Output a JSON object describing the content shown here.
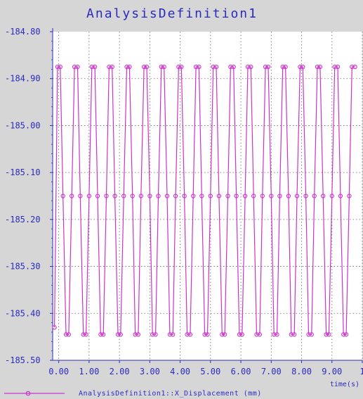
{
  "chart_data": {
    "type": "line",
    "title": "AnalysisDefinition1",
    "xlabel": "time(s)",
    "ylabel": "",
    "xlim": [
      -0.2,
      10.0
    ],
    "ylim": [
      -185.5,
      -184.8
    ],
    "x_ticks": [
      "0.00",
      "1.00",
      "2.00",
      "3.00",
      "4.00",
      "5.00",
      "6.00",
      "7.00",
      "8.00",
      "9.00",
      "1"
    ],
    "y_ticks": [
      "-184.80",
      "-184.90",
      "-185.00",
      "-185.10",
      "-185.20",
      "-185.30",
      "-185.40",
      "-185.50"
    ],
    "grid": true,
    "legend_position": "bottom-left",
    "colors": {
      "series": "#cc33cc",
      "text": "#2b2bbf",
      "plot_bg": "#ffffff",
      "page_bg": "#d6d6d6"
    },
    "period_s": 0.952,
    "series": [
      {
        "name": "AnalysisDefinition1::X_Displacement (mm)",
        "x": [
          -0.14,
          -0.04,
          0.05,
          0.14,
          0.24,
          0.33,
          0.43,
          0.52,
          0.62,
          0.71,
          0.81,
          0.9,
          1.0,
          1.09,
          1.19,
          1.28,
          1.38,
          1.47,
          1.57,
          1.66,
          1.76,
          1.85,
          1.95,
          2.04,
          2.14,
          2.24,
          2.33,
          2.43,
          2.52,
          2.62,
          2.71,
          2.81,
          2.9,
          3.0,
          3.09,
          3.19,
          3.28,
          3.38,
          3.47,
          3.57,
          3.66,
          3.76,
          3.85,
          3.95,
          4.04,
          4.14,
          4.23,
          4.33,
          4.43,
          4.52,
          4.62,
          4.71,
          4.81,
          4.9,
          5.0,
          5.09,
          5.19,
          5.28,
          5.38,
          5.47,
          5.57,
          5.66,
          5.76,
          5.85,
          5.95,
          6.04,
          6.14,
          6.23,
          6.33,
          6.42,
          6.52,
          6.62,
          6.71,
          6.81,
          6.9,
          7.0,
          7.09,
          7.19,
          7.28,
          7.38,
          7.47,
          7.57,
          7.66,
          7.76,
          7.85,
          7.95,
          8.04,
          8.14,
          8.23,
          8.33,
          8.42,
          8.52,
          8.61,
          8.71,
          8.81,
          8.9,
          9.0,
          9.09,
          9.19,
          9.28,
          9.38,
          9.47,
          9.57,
          9.66,
          9.76
        ],
        "y": [
          -185.43,
          -184.875,
          -184.875,
          -185.15,
          -185.445,
          -185.445,
          -185.15,
          -184.875,
          -184.875,
          -185.15,
          -185.445,
          -185.445,
          -185.15,
          -184.875,
          -184.875,
          -185.15,
          -185.445,
          -185.445,
          -185.15,
          -184.875,
          -184.875,
          -185.15,
          -185.445,
          -185.445,
          -185.15,
          -184.875,
          -184.875,
          -185.15,
          -185.445,
          -185.445,
          -185.15,
          -184.875,
          -184.875,
          -185.15,
          -185.445,
          -185.445,
          -185.15,
          -184.875,
          -184.875,
          -185.15,
          -185.445,
          -185.445,
          -185.15,
          -184.875,
          -184.875,
          -185.15,
          -185.445,
          -185.445,
          -185.15,
          -184.875,
          -184.875,
          -185.15,
          -185.445,
          -185.445,
          -185.15,
          -184.875,
          -184.875,
          -185.15,
          -185.445,
          -185.445,
          -185.15,
          -184.875,
          -184.875,
          -185.15,
          -185.445,
          -185.445,
          -185.15,
          -184.875,
          -184.875,
          -185.15,
          -185.445,
          -185.445,
          -185.15,
          -184.875,
          -184.875,
          -185.15,
          -185.445,
          -185.445,
          -185.15,
          -184.875,
          -184.875,
          -185.15,
          -185.445,
          -185.445,
          -185.15,
          -184.875,
          -184.875,
          -185.15,
          -185.445,
          -185.445,
          -185.15,
          -184.875,
          -184.875,
          -185.15,
          -185.445,
          -185.445,
          -185.15,
          -184.875,
          -184.875,
          -185.15,
          -185.445,
          -185.445,
          -185.15,
          -184.875,
          -184.875
        ]
      }
    ]
  }
}
